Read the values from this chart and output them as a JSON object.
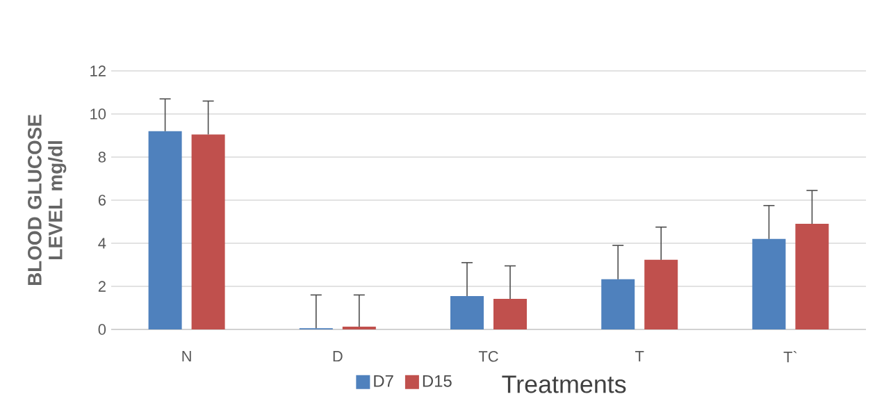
{
  "chart_data": {
    "type": "bar",
    "ylabel": "BLOOD GLUCOSE LEVEL mg/dl",
    "xlabel": "Treatments",
    "categories": [
      "N",
      "D",
      "TC",
      "T",
      "T`"
    ],
    "series": [
      {
        "name": "D7",
        "color": "#4f81bd",
        "values": [
          9.2,
          0.06,
          1.55,
          2.33,
          4.2
        ],
        "errors": [
          [
            9.2,
            10.7
          ],
          [
            0.06,
            1.6
          ],
          [
            1.55,
            3.1
          ],
          [
            2.33,
            3.9
          ],
          [
            4.2,
            5.75
          ]
        ]
      },
      {
        "name": "D15",
        "color": "#c0504d",
        "values": [
          9.05,
          0.13,
          1.42,
          3.23,
          4.9
        ],
        "errors": [
          [
            9.05,
            10.6
          ],
          [
            0.13,
            1.6
          ],
          [
            1.42,
            2.95
          ],
          [
            3.23,
            4.75
          ],
          [
            4.9,
            6.45
          ]
        ]
      }
    ],
    "ylim": [
      0,
      12
    ],
    "yticks": [
      0,
      2,
      4,
      6,
      8,
      10,
      12
    ],
    "grid": "y",
    "legend": "bottom"
  }
}
